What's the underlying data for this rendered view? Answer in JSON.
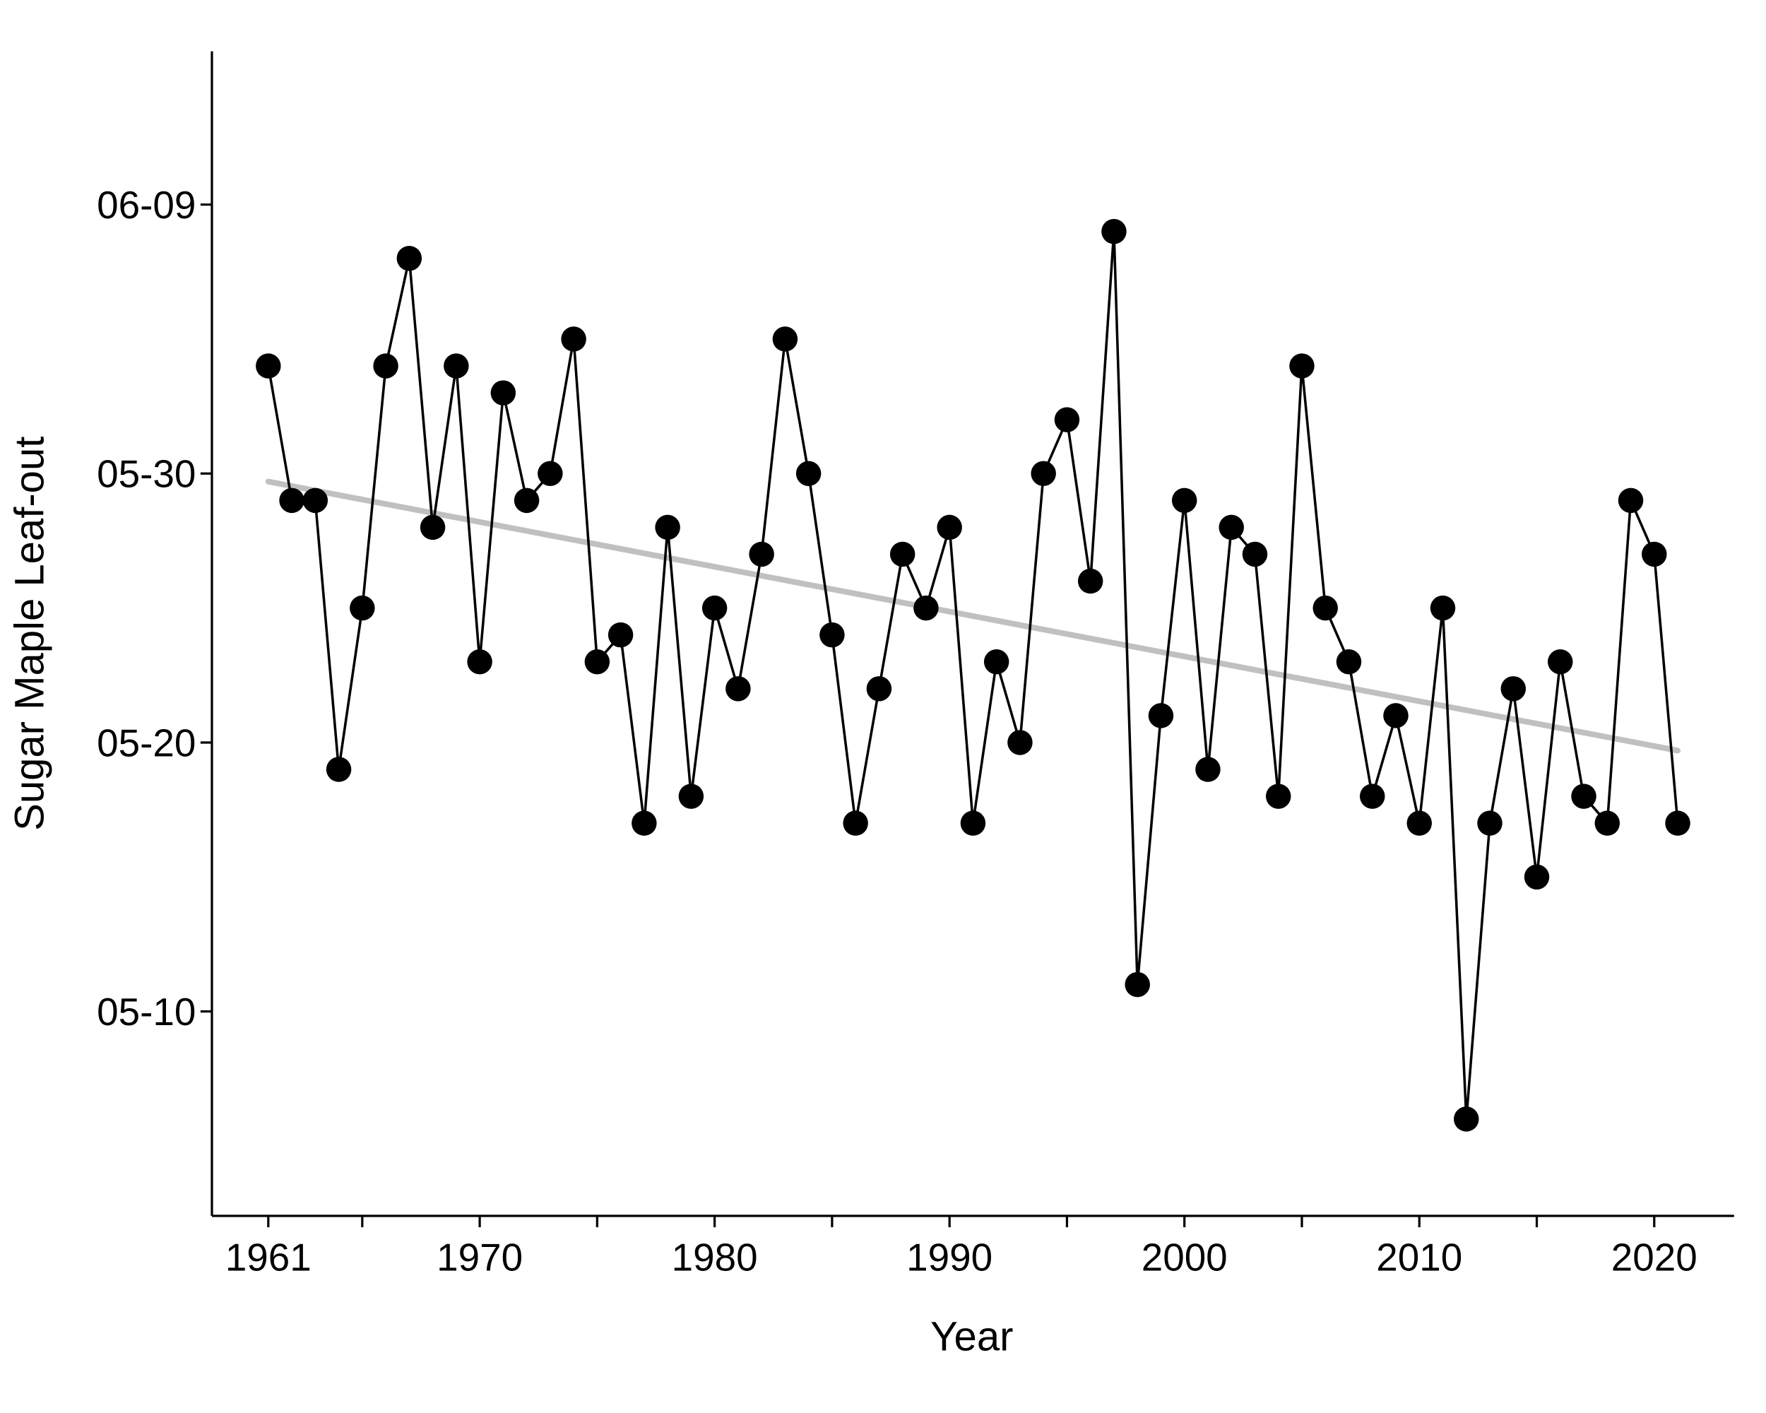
{
  "chart_data": {
    "type": "line",
    "title": "",
    "xlabel": "Year",
    "ylabel": "Sugar Maple Leaf-out",
    "y_units": "day of year (non-leap); tick labels shown as MM-DD",
    "xlim": [
      1958.6,
      2023.4
    ],
    "ylim": [
      122.4,
      165.7
    ],
    "x_ticks": [
      1961,
      1970,
      1980,
      1990,
      2000,
      2010,
      2020
    ],
    "x_tick_labels": [
      "1961",
      "1970",
      "1980",
      "1990",
      "2000",
      "2010",
      "2020"
    ],
    "x_minor_ticks": [
      1965,
      1975,
      1985,
      1995,
      2005,
      2015
    ],
    "y_ticks": [
      130,
      140,
      150,
      160
    ],
    "y_tick_labels": [
      "05-10",
      "05-20",
      "05-30",
      "06-09"
    ],
    "grid": false,
    "series": [
      {
        "name": "Leaf-out date",
        "color": "#000000",
        "marker": "circle",
        "x": [
          1961,
          1962,
          1963,
          1964,
          1965,
          1966,
          1967,
          1968,
          1969,
          1970,
          1971,
          1972,
          1973,
          1974,
          1975,
          1976,
          1977,
          1978,
          1979,
          1980,
          1981,
          1982,
          1983,
          1984,
          1985,
          1986,
          1987,
          1988,
          1989,
          1990,
          1991,
          1992,
          1993,
          1994,
          1995,
          1996,
          1997,
          1998,
          1999,
          2000,
          2001,
          2002,
          2003,
          2004,
          2005,
          2006,
          2007,
          2008,
          2009,
          2010,
          2011,
          2012,
          2013,
          2014,
          2015,
          2016,
          2017,
          2018,
          2019,
          2020,
          2021
        ],
        "y": [
          154,
          149,
          149,
          139,
          145,
          154,
          158,
          148,
          154,
          143,
          153,
          149,
          150,
          155,
          143,
          144,
          137,
          148,
          138,
          145,
          142,
          147,
          155,
          150,
          144,
          137,
          142,
          147,
          145,
          148,
          137,
          143,
          140,
          150,
          152,
          146,
          159,
          131,
          141,
          149,
          139,
          148,
          147,
          138,
          154,
          145,
          143,
          138,
          141,
          137,
          145,
          126,
          137,
          142,
          135,
          143,
          138,
          137,
          149,
          147,
          137
        ]
      },
      {
        "name": "Linear trend",
        "color": "#c0c0c0",
        "type": "line",
        "x": [
          1961,
          2021
        ],
        "y": [
          149.7,
          139.7
        ]
      }
    ]
  }
}
